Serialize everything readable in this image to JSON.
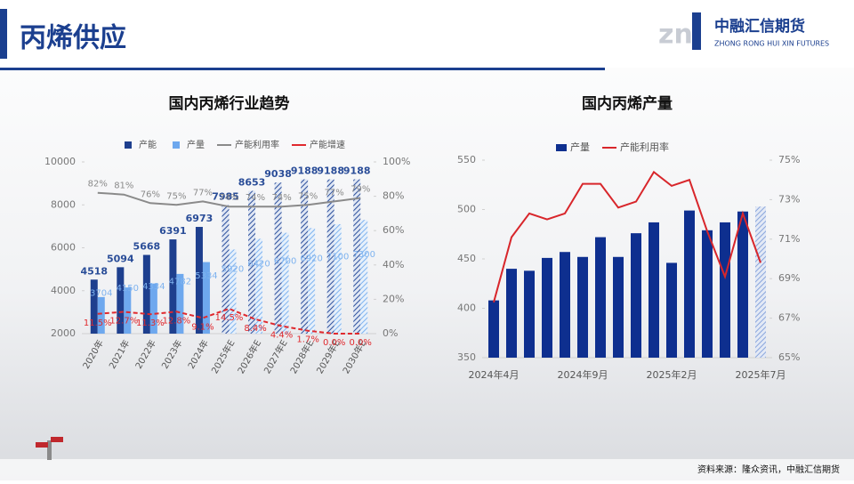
{
  "header": {
    "title": "丙烯供应",
    "logo": "中融汇信期货",
    "logo_en": "ZHONG RONG HUI XIN FUTURES"
  },
  "chart_data": [
    {
      "type": "bar",
      "title": "国内丙烯行业趋势",
      "categories": [
        "2020年",
        "2021年",
        "2022年",
        "2023年",
        "2024年",
        "2025年E",
        "2026年E",
        "2027年E",
        "2028年E",
        "2029年E",
        "2030年E"
      ],
      "series": [
        {
          "name": "产能",
          "type": "bar",
          "color": "#1e3f8e",
          "values": [
            4518,
            5094,
            5668,
            6391,
            6973,
            7985,
            8653,
            9038,
            9188,
            9188,
            9188
          ]
        },
        {
          "name": "产量",
          "type": "bar",
          "color": "#6ea8ee",
          "values": [
            3704,
            4150,
            4334,
            4782,
            5334,
            5920,
            6420,
            6700,
            6920,
            7100,
            7300
          ]
        },
        {
          "name": "产能利用率",
          "type": "line",
          "axis": "y2",
          "color": "#8a8a8a",
          "values": [
            82,
            81,
            76,
            75,
            77,
            74,
            74,
            74,
            75,
            77,
            79
          ],
          "value_labels": [
            "82%",
            "81%",
            "76%",
            "75%",
            "77%",
            "74%",
            "74%",
            "74%",
            "75%",
            "77%",
            "79%"
          ]
        },
        {
          "name": "产能增速",
          "type": "line",
          "axis": "y2",
          "color": "#e0292e",
          "values": [
            11.5,
            12.7,
            11.3,
            12.8,
            9.1,
            14.5,
            8.4,
            4.4,
            1.7,
            0,
            0
          ],
          "value_labels": [
            "11.5%",
            "12.7%",
            "11.3%",
            "12.8%",
            "9.1%",
            "14.5%",
            "8.4%",
            "4.4%",
            "1.7%",
            "0.0%",
            "0.0%"
          ]
        }
      ],
      "ylim": [
        2000,
        10000
      ],
      "yticks": [
        2000,
        4000,
        6000,
        8000,
        10000
      ],
      "y2lim": [
        0,
        100
      ],
      "y2ticks": [
        {
          "value": 0,
          "label": "0%"
        },
        {
          "value": 20,
          "label": "20%"
        },
        {
          "value": 40,
          "label": "40%"
        },
        {
          "value": 60,
          "label": "60%"
        },
        {
          "value": 80,
          "label": "80%"
        },
        {
          "value": 100,
          "label": "100%"
        }
      ],
      "grid": false
    },
    {
      "type": "bar",
      "title": "国内丙烯产量",
      "categories": [
        "2024年4月",
        null,
        null,
        null,
        null,
        "2024年9月",
        null,
        null,
        null,
        null,
        "2025年2月",
        null,
        null,
        null,
        null,
        "2025年7月"
      ],
      "series": [
        {
          "name": "产量",
          "type": "bar",
          "color": "#0e2f8f",
          "values": [
            408,
            440,
            438,
            451,
            457,
            452,
            472,
            452,
            476,
            487,
            446,
            499,
            479,
            487,
            498,
            503
          ]
        },
        {
          "name": "产能利用率",
          "type": "line",
          "axis": "y2",
          "color": "#d8262b",
          "values": [
            67.8,
            71.1,
            72.3,
            72.0,
            72.3,
            73.8,
            73.8,
            72.6,
            72.9,
            74.4,
            73.7,
            74.0,
            71.4,
            69.1,
            72.3,
            69.8
          ]
        }
      ],
      "ylim": [
        350,
        550
      ],
      "yticks": [
        350,
        400,
        450,
        500,
        550
      ],
      "y2lim": [
        65,
        75
      ],
      "y2ticks": [
        {
          "value": 65,
          "label": "65%"
        },
        {
          "value": 67,
          "label": "67%"
        },
        {
          "value": 69,
          "label": "69%"
        },
        {
          "value": 71,
          "label": "71%"
        },
        {
          "value": 73,
          "label": "73%"
        },
        {
          "value": 75,
          "label": "75%"
        }
      ],
      "grid": false
    }
  ],
  "footer": {
    "source": "资料来源：隆众资讯，中融汇信期货"
  }
}
